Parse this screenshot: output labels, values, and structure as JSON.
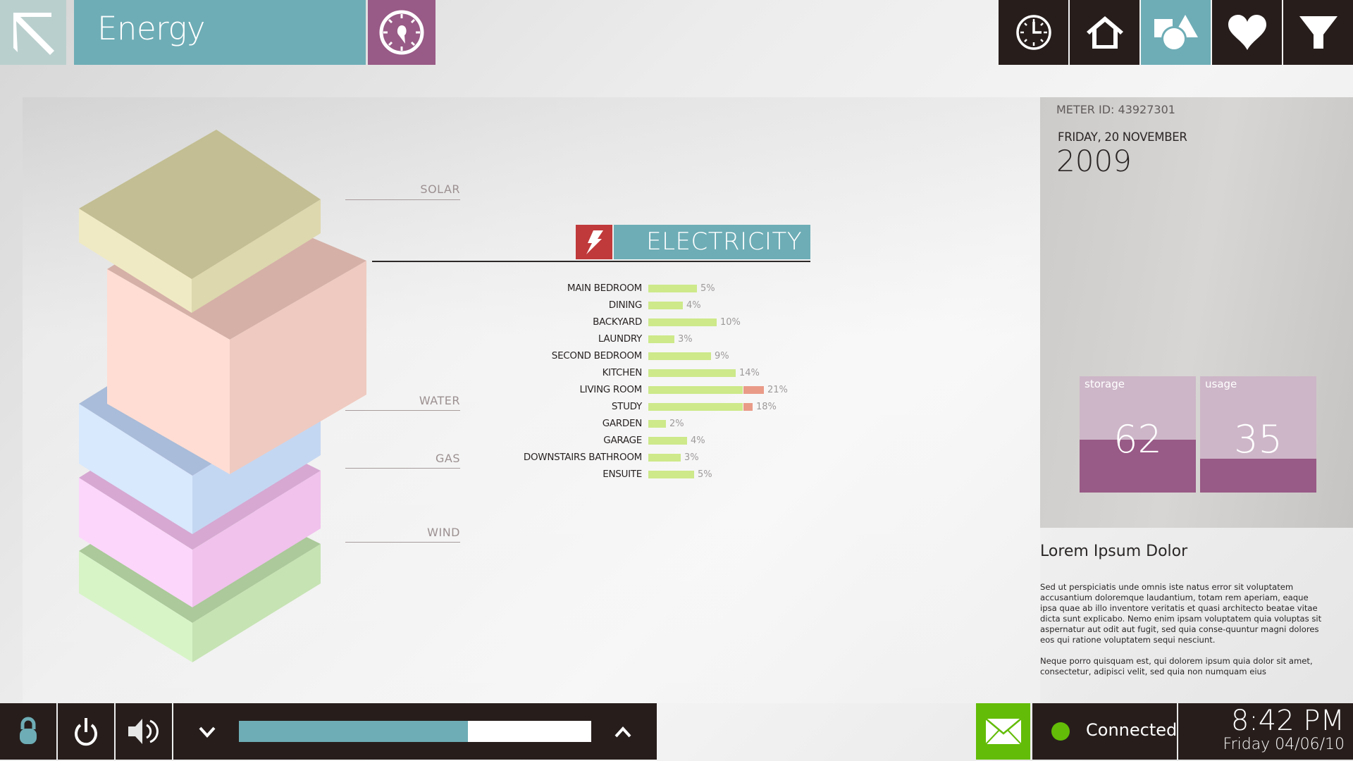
{
  "header": {
    "title": "Energy",
    "back_icon": "arrow-up-left-icon",
    "gauge_icon": "gauge-icon",
    "nav": [
      {
        "id": "history",
        "icon": "clock-icon",
        "active": false
      },
      {
        "id": "home",
        "icon": "home-icon",
        "active": false
      },
      {
        "id": "shapes",
        "icon": "shapes-icon",
        "active": true
      },
      {
        "id": "favorites",
        "icon": "heart-icon",
        "active": false
      },
      {
        "id": "filter",
        "icon": "filter-icon",
        "active": false
      }
    ]
  },
  "stack": {
    "labels": {
      "solar": "SOLAR",
      "water": "WATER",
      "gas": "GAS",
      "wind": "WIND"
    },
    "colors": {
      "solar": "#c3be93",
      "electricity": "#ffddd4",
      "water": "#d8e8fd",
      "gas": "#fcd6fb",
      "wind": "#d7f4c7"
    }
  },
  "electricity": {
    "title": "ELECTRICITY",
    "icon": "lightning-icon",
    "rooms": [
      {
        "label": "MAIN BEDROOM",
        "pct": "5%",
        "green": 69,
        "red": 0
      },
      {
        "label": "DINING",
        "pct": "4%",
        "green": 49,
        "red": 0
      },
      {
        "label": "BACKYARD",
        "pct": "10%",
        "green": 97,
        "red": 0
      },
      {
        "label": "LAUNDRY",
        "pct": "3%",
        "green": 37,
        "red": 0
      },
      {
        "label": "SECOND BEDROOM",
        "pct": "9%",
        "green": 89,
        "red": 0
      },
      {
        "label": "KITCHEN",
        "pct": "14%",
        "green": 124,
        "red": 0
      },
      {
        "label": "LIVING ROOM",
        "pct": "21%",
        "green": 134,
        "red": 29
      },
      {
        "label": "STUDY",
        "pct": "18%",
        "green": 134,
        "red": 13
      },
      {
        "label": "GARDEN",
        "pct": "2%",
        "green": 25,
        "red": 0
      },
      {
        "label": "GARAGE",
        "pct": "4%",
        "green": 55,
        "red": 0
      },
      {
        "label": "DOWNSTAIRS BATHROOM",
        "pct": "3%",
        "green": 46,
        "red": 0
      },
      {
        "label": "ENSUITE",
        "pct": "5%",
        "green": 65,
        "red": 0
      }
    ]
  },
  "meter": {
    "id_text": "METER ID: 43927301",
    "date_line": "FRIDAY, 20 NOVEMBER",
    "year": "2009",
    "stats": [
      {
        "label": "storage",
        "value": "62",
        "fill_pct": 62
      },
      {
        "label": "usage",
        "value": "35",
        "fill_pct": 35
      }
    ]
  },
  "article": {
    "title": "Lorem Ipsum Dolor",
    "paragraphs": [
      "Sed ut perspiciatis unde omnis iste natus error sit voluptatem accusantium doloremque laudantium, totam rem aperiam, eaque ipsa quae ab illo inventore veritatis et quasi architecto beatae vitae dicta sunt explicabo. Nemo enim ipsam voluptatem quia voluptas sit aspernatur aut odit aut fugit, sed quia conse-quuntur magni dolores eos qui ratione voluptatem sequi nesciunt.",
      "Neque porro quisquam est, qui dolorem ipsum quia dolor sit amet, consectetur, adipisci velit, sed quia non numquam eius"
    ]
  },
  "bottom_bar": {
    "lock_icon": "lock-icon",
    "power_icon": "power-icon",
    "volume_icon": "volume-icon",
    "slider_value_pct": 65,
    "status": "Connected",
    "status_color": "#63bc07",
    "time": "8:42 PM",
    "date": "Friday 04/06/10"
  }
}
